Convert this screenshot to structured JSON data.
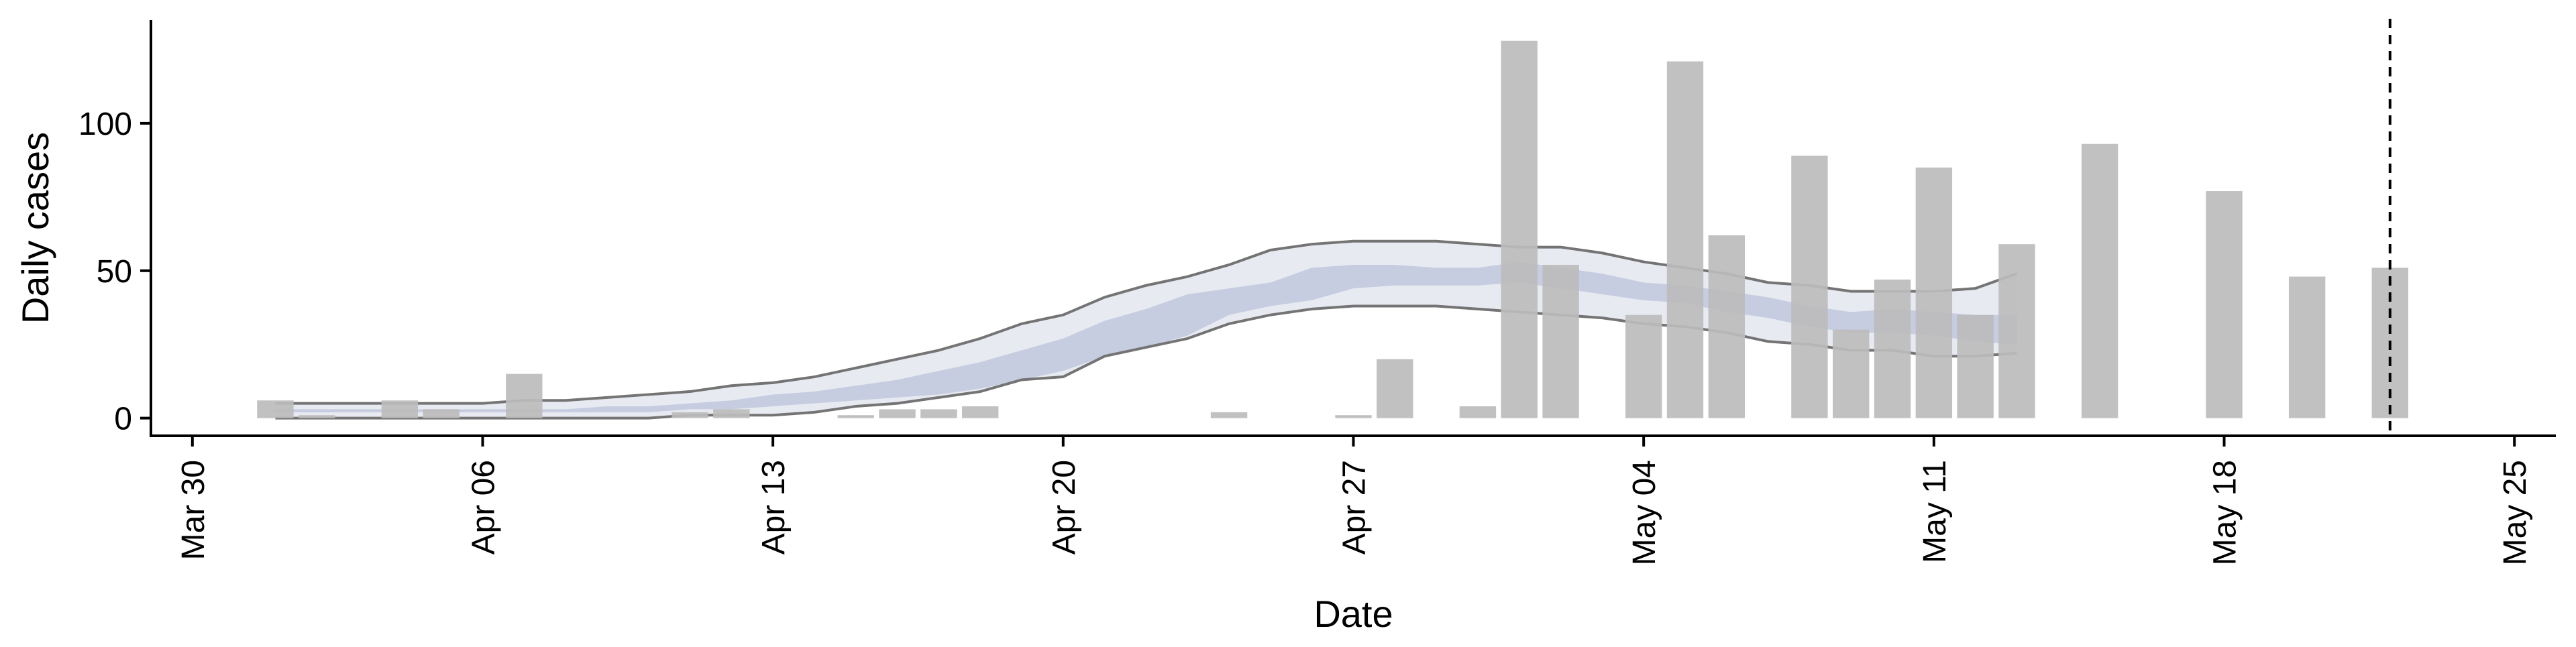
{
  "chart_data": {
    "type": "bar",
    "title": "",
    "xlabel": "Date",
    "ylabel": "Daily cases",
    "x_ticks": [
      "Mar 30",
      "Apr 06",
      "Apr 13",
      "Apr 20",
      "Apr 27",
      "May 04",
      "May 11",
      "May 18",
      "May 25"
    ],
    "x_tick_dates": [
      "2020-03-30",
      "2020-04-06",
      "2020-04-13",
      "2020-04-20",
      "2020-04-27",
      "2020-05-04",
      "2020-05-11",
      "2020-05-18",
      "2020-05-25"
    ],
    "y_ticks": [
      0,
      50,
      100
    ],
    "ylim": [
      -6,
      135
    ],
    "xlim": [
      "2020-03-29",
      "2020-05-26"
    ],
    "grid": false,
    "legend": "none",
    "vertical_line": "2020-05-22",
    "bars": {
      "name": "",
      "x": [
        "2020-04-01",
        "2020-04-02",
        "2020-04-04",
        "2020-04-05",
        "2020-04-07",
        "2020-04-11",
        "2020-04-12",
        "2020-04-15",
        "2020-04-16",
        "2020-04-17",
        "2020-04-18",
        "2020-04-24",
        "2020-04-27",
        "2020-04-28",
        "2020-04-30",
        "2020-05-01",
        "2020-05-02",
        "2020-05-04",
        "2020-05-05",
        "2020-05-06",
        "2020-05-08",
        "2020-05-09",
        "2020-05-10",
        "2020-05-11",
        "2020-05-12",
        "2020-05-13",
        "2020-05-15",
        "2020-05-18",
        "2020-05-20",
        "2020-05-22"
      ],
      "values": [
        6,
        1,
        6,
        3,
        15,
        2,
        3,
        1,
        3,
        3,
        4,
        2,
        1,
        20,
        4,
        128,
        52,
        35,
        121,
        62,
        89,
        30,
        47,
        85,
        35,
        59,
        93,
        77,
        48,
        51
      ]
    },
    "estimate": {
      "x": [
        "2020-04-01",
        "2020-04-02",
        "2020-04-03",
        "2020-04-04",
        "2020-04-05",
        "2020-04-06",
        "2020-04-07",
        "2020-04-08",
        "2020-04-09",
        "2020-04-10",
        "2020-04-11",
        "2020-04-12",
        "2020-04-13",
        "2020-04-14",
        "2020-04-15",
        "2020-04-16",
        "2020-04-17",
        "2020-04-18",
        "2020-04-19",
        "2020-04-20",
        "2020-04-21",
        "2020-04-22",
        "2020-04-23",
        "2020-04-24",
        "2020-04-25",
        "2020-04-26",
        "2020-04-27",
        "2020-04-28",
        "2020-04-29",
        "2020-04-30",
        "2020-05-01",
        "2020-05-02",
        "2020-05-03",
        "2020-05-04",
        "2020-05-05",
        "2020-05-06",
        "2020-05-07",
        "2020-05-08",
        "2020-05-09",
        "2020-05-10",
        "2020-05-11",
        "2020-05-12",
        "2020-05-13"
      ],
      "upper90": [
        5,
        5,
        5,
        5,
        5,
        5,
        6,
        6,
        7,
        8,
        9,
        11,
        12,
        14,
        17,
        20,
        23,
        27,
        32,
        35,
        41,
        45,
        48,
        52,
        57,
        59,
        60,
        60,
        60,
        59,
        58,
        58,
        56,
        53,
        51,
        49,
        46,
        45,
        43,
        43,
        43,
        44,
        49
      ],
      "upper50": [
        3,
        3,
        3,
        3,
        3,
        3,
        3,
        3,
        4,
        4,
        5,
        6,
        8,
        9,
        11,
        13,
        16,
        19,
        23,
        27,
        33,
        37,
        42,
        44,
        46,
        51,
        52,
        52,
        51,
        51,
        53,
        51,
        49,
        46,
        45,
        43,
        41,
        38,
        36,
        37,
        36,
        35,
        35
      ],
      "lower50": [
        2,
        2,
        2,
        2,
        2,
        2,
        2,
        2,
        2,
        2,
        3,
        3,
        4,
        5,
        6,
        7,
        8,
        10,
        13,
        16,
        21,
        24,
        28,
        35,
        38,
        40,
        44,
        45,
        45,
        45,
        46,
        44,
        42,
        40,
        39,
        36,
        34,
        31,
        29,
        29,
        28,
        26,
        25
      ],
      "lower90": [
        0,
        0,
        0,
        0,
        0,
        0,
        0,
        0,
        0,
        0,
        1,
        1,
        1,
        2,
        4,
        5,
        7,
        9,
        13,
        14,
        21,
        24,
        27,
        32,
        35,
        37,
        38,
        38,
        38,
        37,
        36,
        35,
        34,
        32,
        31,
        29,
        26,
        25,
        23,
        23,
        21,
        21,
        22
      ]
    },
    "colors": {
      "bars": "#bcbcbc",
      "band90": "#e8eaf2",
      "band50": "#c6cde0",
      "bound_lines": "#747474",
      "axis": "#000000"
    }
  }
}
